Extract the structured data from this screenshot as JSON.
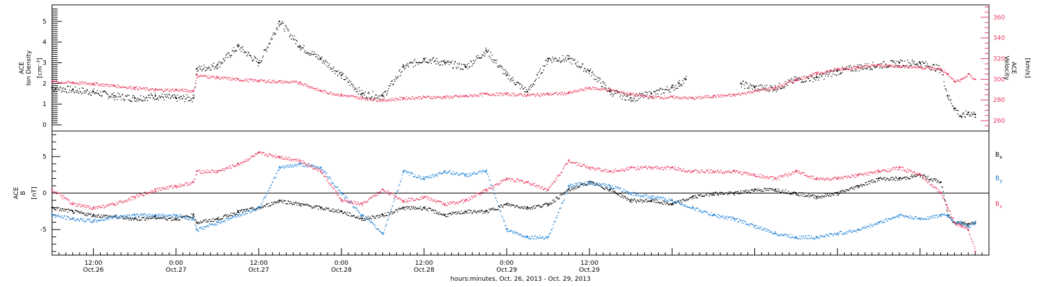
{
  "chart_data": [
    {
      "type": "scatter",
      "panel": "top",
      "ylabel_lines": [
        "ACE",
        "Ion Density"
      ],
      "yunit": "[cm⁻³]",
      "y2label_lines": [
        "ACE",
        "Velocity"
      ],
      "y2unit": "[km/s]",
      "ylim": [
        -0.3,
        5.8
      ],
      "yticks": [
        "0",
        "1",
        "2",
        "3",
        "4",
        "5"
      ],
      "y2lim": [
        250,
        372
      ],
      "y2ticks": [
        "260",
        "280",
        "300",
        "320",
        "340",
        "360"
      ],
      "series": [
        {
          "color": "#000000",
          "axis": "left",
          "x": [
            -6,
            -3,
            0,
            3,
            6,
            9,
            12,
            14.5,
            15,
            18,
            21,
            24,
            27,
            30,
            33,
            36,
            39,
            42,
            45,
            48,
            51,
            54,
            57,
            60,
            63,
            66,
            69,
            72,
            75,
            78,
            81,
            84,
            85,
            86
          ],
          "y": [
            1.8,
            1.7,
            1.6,
            1.4,
            1.3,
            1.4,
            1.3,
            1.3,
            2.7,
            2.9,
            3.8,
            3.0,
            5.0,
            3.8,
            3.2,
            2.4,
            1.5,
            1.4,
            2.8,
            3.2,
            3.0,
            2.8,
            3.6,
            2.4,
            1.6,
            3.2,
            3.2,
            2.6,
            1.6,
            1.3,
            1.5,
            1.8,
            2.0,
            2.2
          ]
        },
        {
          "color": "#000000",
          "axis": "left",
          "x": [
            94,
            96,
            99,
            102,
            105,
            108,
            111,
            114,
            117,
            120,
            123,
            124,
            125,
            126,
            127,
            128
          ],
          "y": [
            2.0,
            1.8,
            1.8,
            2.2,
            2.3,
            2.6,
            2.8,
            2.9,
            3.0,
            3.0,
            2.7,
            1.4,
            0.8,
            0.4,
            0.6,
            0.5
          ]
        },
        {
          "color": "#e8385f",
          "axis": "right",
          "x": [
            -6,
            -3,
            0,
            3,
            6,
            9,
            12,
            14.5,
            15,
            18,
            21,
            24,
            27,
            30,
            33,
            36,
            39,
            42,
            45,
            48,
            51,
            54,
            57,
            60,
            63,
            66,
            69,
            72,
            75,
            78,
            81,
            84,
            87,
            90,
            93,
            96,
            99,
            102,
            105,
            108,
            111,
            114,
            117,
            120,
            123,
            124,
            125,
            126,
            127,
            128
          ],
          "y": [
            298,
            297,
            296,
            294,
            292,
            290,
            290,
            289,
            304,
            302,
            300,
            299,
            298,
            297,
            289,
            285,
            282,
            280,
            282,
            283,
            283,
            284,
            286,
            286,
            285,
            286,
            287,
            292,
            290,
            286,
            283,
            283,
            282,
            284,
            285,
            289,
            292,
            300,
            306,
            310,
            312,
            314,
            313,
            312,
            310,
            305,
            298,
            300,
            305,
            300
          ]
        }
      ]
    },
    {
      "type": "line",
      "panel": "bottom",
      "ylabel_lines": [
        "ACE",
        "B"
      ],
      "yunit": "[nT]",
      "ylim": [
        -8.5,
        8.5
      ],
      "yticks": [
        "-5",
        "0",
        "5"
      ],
      "xlim": [
        -6,
        130
      ],
      "xticks": [
        {
          "x": 0,
          "line1": "12:00",
          "line2": "Oct.26"
        },
        {
          "x": 12,
          "line1": "0:00",
          "line2": "Oct.27"
        },
        {
          "x": 24,
          "line1": "12:00",
          "line2": "Oct.27"
        },
        {
          "x": 36,
          "line1": "0:00",
          "line2": "Oct.28"
        },
        {
          "x": 48,
          "line1": "12:00",
          "line2": "Oct.28"
        },
        {
          "x": 60,
          "line1": "0:00",
          "line2": "Oct.29"
        },
        {
          "x": 72,
          "line1": "12:00",
          "line2": "Oct.29"
        }
      ],
      "xlabel": "hours:minutes, Oct. 26, 2013 - Oct. 29, 2013",
      "legend": [
        {
          "base": "B",
          "sub": "x",
          "color": "#000000"
        },
        {
          "base": "B",
          "sub": "y",
          "color": "#1a7fd6"
        },
        {
          "base": "B",
          "sub": "z",
          "color": "#e8385f"
        }
      ],
      "series": [
        {
          "name": "Bx",
          "color": "#000000",
          "x": [
            -6,
            -3,
            0,
            3,
            6,
            9,
            12,
            14.5,
            15,
            18,
            21,
            24,
            27,
            30,
            33,
            36,
            39,
            42,
            45,
            48,
            51,
            54,
            57,
            60,
            63,
            66,
            69,
            72,
            75,
            78,
            81,
            84,
            87,
            90,
            93,
            96,
            99,
            102,
            105,
            108,
            111,
            114,
            117,
            120,
            123,
            124,
            125,
            126,
            127,
            128
          ],
          "y": [
            -2.0,
            -2.5,
            -3.0,
            -3.2,
            -3.5,
            -3.3,
            -3.5,
            -3.0,
            -4.0,
            -3.5,
            -2.5,
            -2.0,
            -1.0,
            -1.5,
            -2.0,
            -2.5,
            -3.5,
            -3.0,
            -2.0,
            -2.0,
            -3.0,
            -2.5,
            -2.5,
            -1.5,
            -2.0,
            -1.5,
            0.5,
            1.5,
            0.5,
            -1.0,
            -1.0,
            -1.5,
            -0.5,
            0.0,
            0.0,
            0.5,
            0.5,
            0.0,
            -0.5,
            0.0,
            1.0,
            2.0,
            2.0,
            2.5,
            1.5,
            -3.0,
            -4.0,
            -4.0,
            -4.2,
            -4.0
          ]
        },
        {
          "name": "By",
          "color": "#1a7fd6",
          "x": [
            -6,
            -3,
            0,
            3,
            6,
            9,
            12,
            14.5,
            15,
            18,
            21,
            24,
            27,
            30,
            33,
            36,
            39,
            42,
            45,
            48,
            51,
            54,
            57,
            60,
            63,
            66,
            69,
            72,
            75,
            78,
            81,
            84,
            87,
            90,
            93,
            96,
            99,
            102,
            105,
            108,
            111,
            114,
            117,
            120,
            123,
            124,
            125,
            126,
            127,
            128
          ],
          "y": [
            -3.0,
            -3.5,
            -3.8,
            -3.2,
            -3.0,
            -3.0,
            -3.0,
            -3.5,
            -5.0,
            -4.0,
            -3.0,
            -2.0,
            3.5,
            4.0,
            3.5,
            0.0,
            -3.0,
            -5.5,
            3.0,
            2.0,
            3.0,
            2.5,
            3.0,
            -5.0,
            -6.0,
            -6.0,
            1.0,
            1.5,
            1.0,
            0.0,
            -0.5,
            -1.0,
            -2.0,
            -3.0,
            -3.5,
            -4.5,
            -5.5,
            -6.0,
            -6.0,
            -5.5,
            -5.0,
            -4.0,
            -3.0,
            -3.5,
            -3.0,
            -3.0,
            -4.0,
            -4.0,
            -4.5,
            -4.0
          ]
        },
        {
          "name": "Bz",
          "color": "#e8385f",
          "x": [
            -6,
            -3,
            0,
            3,
            6,
            9,
            12,
            14.5,
            15,
            18,
            21,
            24,
            27,
            30,
            33,
            36,
            39,
            42,
            45,
            48,
            51,
            54,
            57,
            60,
            63,
            66,
            69,
            72,
            75,
            78,
            81,
            84,
            87,
            90,
            93,
            96,
            99,
            102,
            105,
            108,
            111,
            114,
            117,
            120,
            123,
            124,
            125,
            126,
            127,
            128
          ],
          "y": [
            0.5,
            -1.5,
            -2.0,
            -1.5,
            -0.5,
            0.5,
            1.0,
            1.5,
            3.0,
            3.0,
            4.0,
            5.5,
            5.0,
            4.5,
            3.0,
            -1.0,
            -1.5,
            0.5,
            -1.0,
            -0.5,
            -1.5,
            -1.0,
            0.5,
            2.0,
            1.5,
            0.5,
            4.5,
            3.5,
            3.0,
            3.5,
            3.5,
            3.5,
            3.0,
            3.0,
            3.0,
            2.5,
            2.0,
            3.0,
            2.0,
            2.0,
            2.5,
            3.0,
            3.5,
            2.5,
            0.0,
            -2.0,
            -4.0,
            -4.5,
            -5.0,
            -8.0
          ]
        }
      ]
    }
  ]
}
